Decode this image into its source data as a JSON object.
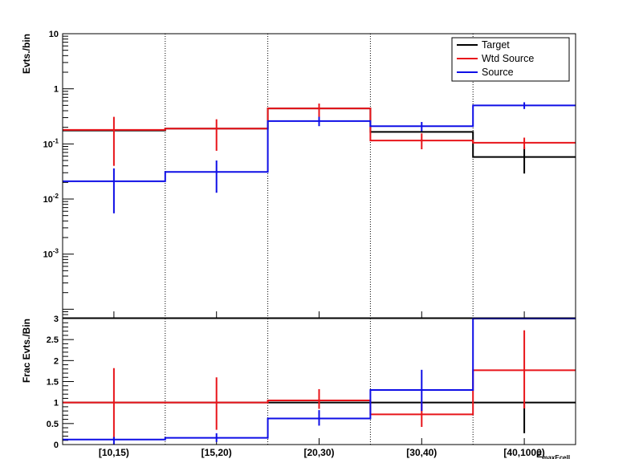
{
  "chart_data": [
    {
      "type": "step-histogram",
      "yscale": "log",
      "ylabel": "Evts./bin",
      "ylim": [
        7e-05,
        10
      ],
      "y_ticks": [
        {
          "value": 10,
          "label": "10",
          "exp": ""
        },
        {
          "value": 1,
          "label": "1",
          "exp": ""
        },
        {
          "value": 0.1,
          "label": "10",
          "exp": "-1"
        },
        {
          "value": 0.01,
          "label": "10",
          "exp": "-2"
        },
        {
          "value": 0.001,
          "label": "10",
          "exp": "-3"
        }
      ],
      "categories": [
        "[10,15)",
        "[15,20)",
        "[20,30)",
        "[30,40)",
        "[40,1000)"
      ],
      "legend": {
        "placement": "top-right",
        "entries": [
          "Target",
          "Wtd Source",
          "Source"
        ]
      },
      "series": [
        {
          "name": "Target",
          "color": "#000000",
          "values": [
            0.175,
            0.19,
            0.44,
            0.165,
            0.058
          ],
          "err_low": [
            null,
            null,
            null,
            null,
            0.029
          ],
          "err_high": [
            null,
            null,
            null,
            null,
            0.087
          ]
        },
        {
          "name": "Wtd Source",
          "color": "#e8141a",
          "values": [
            0.18,
            0.19,
            0.44,
            0.115,
            0.105
          ],
          "err_low": [
            0.04,
            0.075,
            0.3,
            0.08,
            0.08
          ],
          "err_high": [
            0.31,
            0.28,
            0.54,
            0.155,
            0.13
          ]
        },
        {
          "name": "Source",
          "color": "#0e0ee6",
          "values": [
            0.021,
            0.031,
            0.26,
            0.21,
            0.5
          ],
          "err_low": [
            0.0055,
            0.013,
            0.21,
            0.17,
            0.43
          ],
          "err_high": [
            0.036,
            0.05,
            0.31,
            0.25,
            0.57
          ]
        }
      ]
    },
    {
      "type": "step-histogram",
      "yscale": "linear",
      "ylabel": "Frac Evts./Bin",
      "ylim": [
        0,
        3
      ],
      "y_ticks": [
        {
          "value": 0,
          "label": "0"
        },
        {
          "value": 0.5,
          "label": "0.5"
        },
        {
          "value": 1,
          "label": "1"
        },
        {
          "value": 1.5,
          "label": "1.5"
        },
        {
          "value": 2,
          "label": "2"
        },
        {
          "value": 2.5,
          "label": "2.5"
        },
        {
          "value": 3,
          "label": "3"
        }
      ],
      "categories": [
        "[10,15)",
        "[15,20)",
        "[20,30)",
        "[30,40)",
        "[40,1000)"
      ],
      "xlabel": "E",
      "xlabel_sub": "maxEcell",
      "series": [
        {
          "name": "Target",
          "color": "#000000",
          "values": [
            1.0,
            1.0,
            1.0,
            1.0,
            1.0
          ],
          "err_low": [
            null,
            null,
            null,
            null,
            0.27
          ],
          "err_high": [
            null,
            null,
            null,
            null,
            1.0
          ]
        },
        {
          "name": "Wtd Source",
          "color": "#e8141a",
          "values": [
            1.0,
            1.0,
            1.05,
            0.72,
            1.77
          ],
          "err_low": [
            0.14,
            0.35,
            0.85,
            0.42,
            0.86
          ],
          "err_high": [
            1.82,
            1.6,
            1.32,
            1.0,
            2.72
          ]
        },
        {
          "name": "Source",
          "color": "#0e0ee6",
          "values": [
            0.12,
            0.16,
            0.62,
            1.3,
            3.0
          ],
          "err_low": [
            0.0,
            0.06,
            0.45,
            0.8,
            3.0
          ],
          "err_high": [
            0.18,
            0.27,
            0.82,
            1.78,
            3.0
          ]
        }
      ]
    }
  ]
}
